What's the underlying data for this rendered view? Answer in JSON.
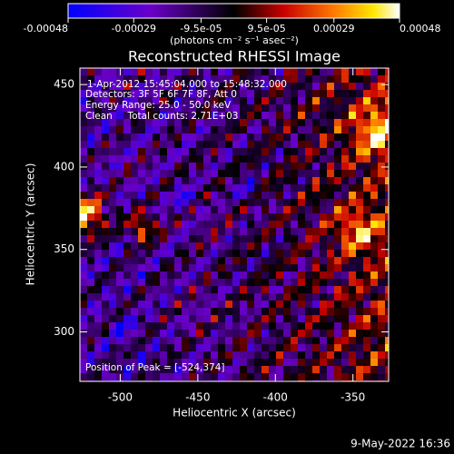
{
  "chart_data": {
    "type": "image",
    "title": "Reconstructed RHESSI Image",
    "colorbar": {
      "label": "(photons cm⁻² s⁻¹ asec⁻²)",
      "lim": [
        -0.00048,
        0.00048
      ],
      "ticks": [
        {
          "value": -0.00048,
          "label": "-0.00048"
        },
        {
          "value": -0.00029,
          "label": "-0.00029"
        },
        {
          "value": -9.5e-05,
          "label": "-9.5e-05"
        },
        {
          "value": 9.5e-05,
          "label": "9.5e-05"
        },
        {
          "value": 0.00029,
          "label": "0.00029"
        },
        {
          "value": 0.00048,
          "label": "0.00048"
        }
      ]
    },
    "x_label": "Heliocentric X (arcsec)",
    "y_label": "Heliocentric Y (arcsec)",
    "xlim": [
      -526,
      -327
    ],
    "ylim": [
      270,
      460
    ],
    "xticks": [
      -500,
      -450,
      -400,
      -350
    ],
    "yticks": [
      300,
      350,
      400,
      450
    ],
    "annotations": [
      "1-Apr-2012 15:45:04.000 to 15:48:32.000",
      "Detectors: 3F 5F 6F 7F 8F, Att 0",
      "Energy Range: 25.0 - 50.0 keV",
      "Clean     Total counts: 2.71E+03"
    ],
    "peak_label": "Position of Peak = [-524,374]",
    "timestamp": "9-May-2022 16:36"
  }
}
